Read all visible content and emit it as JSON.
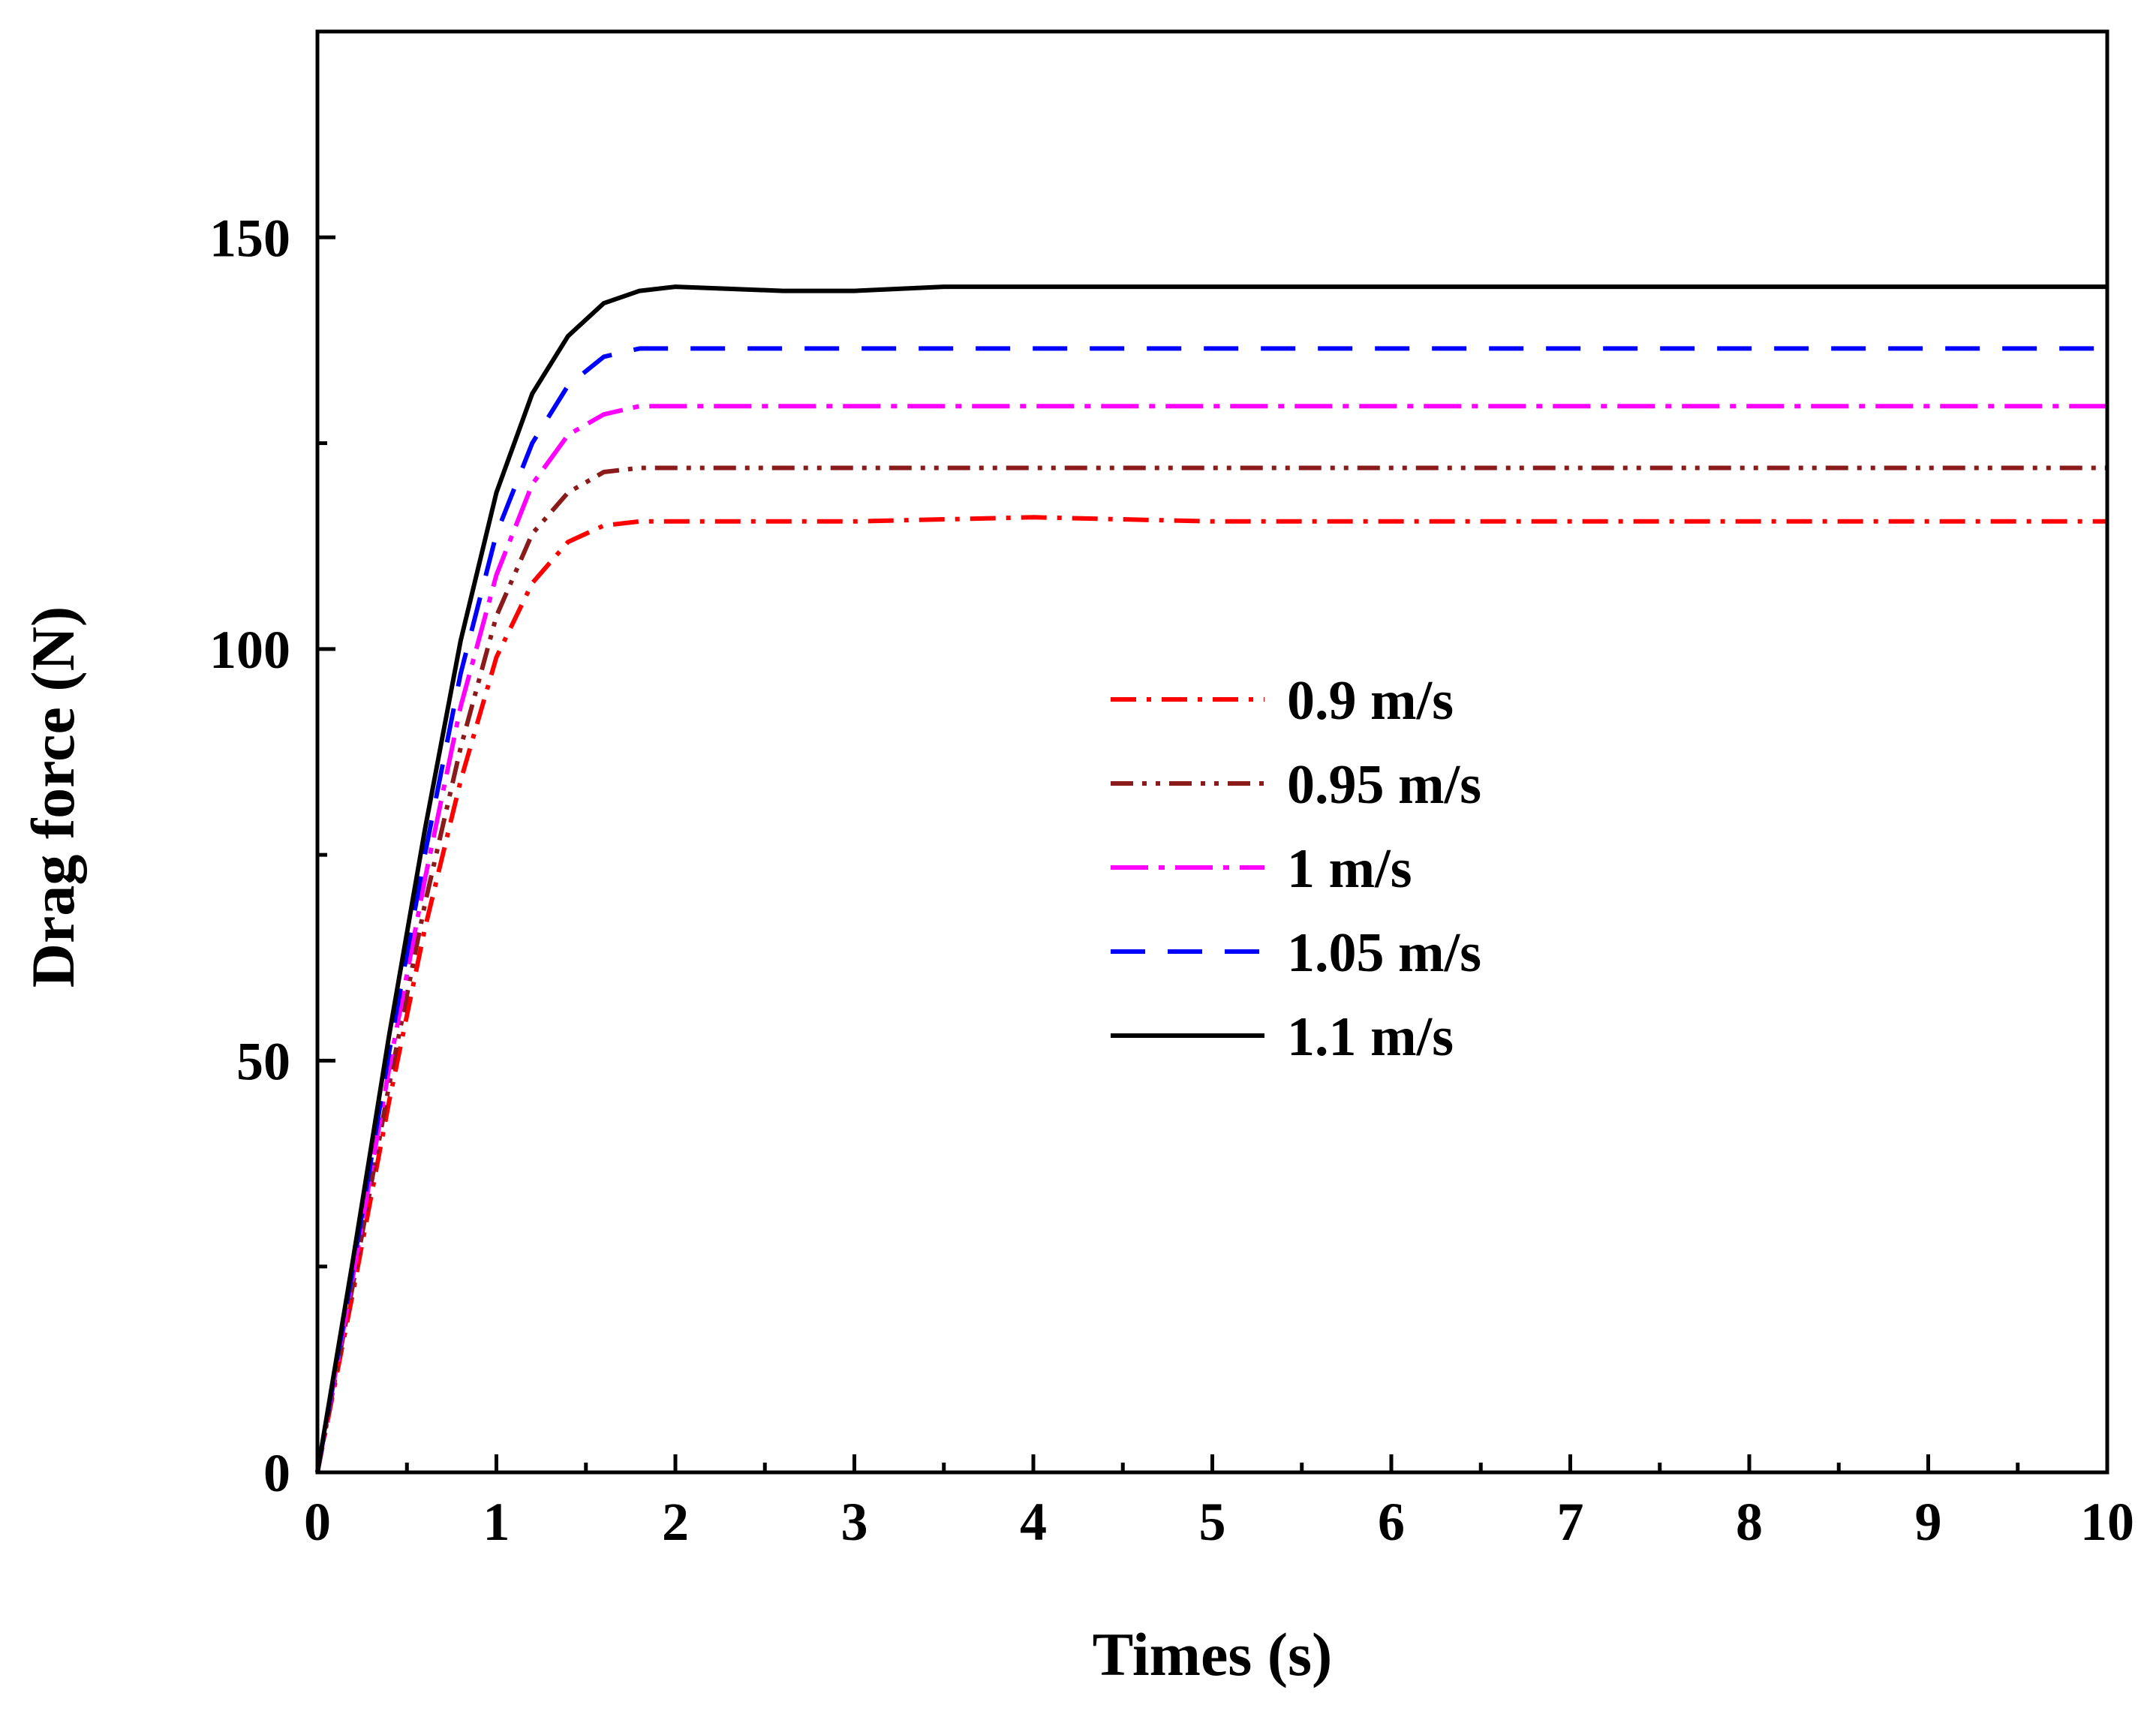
{
  "chart_data": {
    "type": "line",
    "title": "",
    "xlabel": "Times (s)",
    "ylabel": "Drag force (N)",
    "xlim": [
      0,
      10
    ],
    "ylim": [
      0,
      175
    ],
    "x_ticks": [
      0,
      1,
      2,
      3,
      4,
      5,
      6,
      7,
      8,
      9,
      10
    ],
    "x_tick_labels": [
      "0",
      "1",
      "2",
      "3",
      "4",
      "5",
      "6",
      "7",
      "8",
      "9",
      "10"
    ],
    "y_ticks": [
      0,
      50,
      100,
      150
    ],
    "y_tick_labels": [
      "0",
      "50",
      "100",
      "150"
    ],
    "y_minor_ticks": [
      25,
      75,
      125
    ],
    "grid": false,
    "legend_position": "center-right",
    "series": [
      {
        "name": "0.9 m/s",
        "color": "#ff0000",
        "style": "dash-dot",
        "x": [
          0,
          0.2,
          0.4,
          0.6,
          0.8,
          1.0,
          1.2,
          1.4,
          1.6,
          1.8,
          2.0,
          3.0,
          4.0,
          5.0,
          6.0,
          7.0,
          8.0,
          9.0,
          10.0
        ],
        "y": [
          0,
          22,
          45,
          66,
          84,
          99,
          108,
          113,
          115,
          115.5,
          115.5,
          115.5,
          116,
          115.5,
          115.5,
          115.5,
          115.5,
          115.5,
          115.5
        ]
      },
      {
        "name": "0.95 m/s",
        "color": "#8b1a1a",
        "style": "dash-dot-dot",
        "x": [
          0,
          0.2,
          0.4,
          0.6,
          0.8,
          1.0,
          1.2,
          1.4,
          1.6,
          1.8,
          2.0,
          3.0,
          4.0,
          5.0,
          6.0,
          7.0,
          8.0,
          9.0,
          10.0
        ],
        "y": [
          0,
          23,
          47,
          69,
          88,
          104,
          114,
          119,
          121.5,
          122,
          122,
          122,
          122,
          122,
          122,
          122,
          122,
          122,
          122
        ]
      },
      {
        "name": "1 m/s",
        "color": "#ff00ff",
        "style": "long-dash-dot",
        "x": [
          0,
          0.2,
          0.4,
          0.6,
          0.8,
          1.0,
          1.2,
          1.4,
          1.6,
          1.8,
          2.0,
          3.0,
          4.0,
          5.0,
          6.0,
          7.0,
          8.0,
          9.0,
          10.0
        ],
        "y": [
          0,
          24,
          49,
          72,
          93,
          109,
          120,
          126,
          128.5,
          129.5,
          129.5,
          129.5,
          129.5,
          129.5,
          129.5,
          129.5,
          129.5,
          129.5,
          129.5
        ]
      },
      {
        "name": "1.05 m/s",
        "color": "#0000ff",
        "style": "dash",
        "x": [
          0,
          0.2,
          0.4,
          0.6,
          0.8,
          1.0,
          1.2,
          1.4,
          1.6,
          1.8,
          2.0,
          3.0,
          4.0,
          5.0,
          6.0,
          7.0,
          8.0,
          9.0,
          10.0
        ],
        "y": [
          0,
          25,
          51,
          75,
          97,
          114,
          125,
          132,
          135.5,
          136.5,
          136.5,
          136.5,
          136.5,
          136.5,
          136.5,
          136.5,
          136.5,
          136.5,
          136.5
        ]
      },
      {
        "name": "1.1 m/s",
        "color": "#000000",
        "style": "solid",
        "x": [
          0,
          0.2,
          0.4,
          0.6,
          0.8,
          1.0,
          1.2,
          1.4,
          1.6,
          1.8,
          2.0,
          2.6,
          3.0,
          3.5,
          4.0,
          5.0,
          6.0,
          7.0,
          8.0,
          9.0,
          10.0
        ],
        "y": [
          0,
          26,
          53,
          78,
          101,
          119,
          131,
          138,
          142,
          143.5,
          144,
          143.5,
          143.5,
          144,
          144,
          144,
          144,
          144,
          144,
          144,
          144
        ]
      }
    ]
  }
}
